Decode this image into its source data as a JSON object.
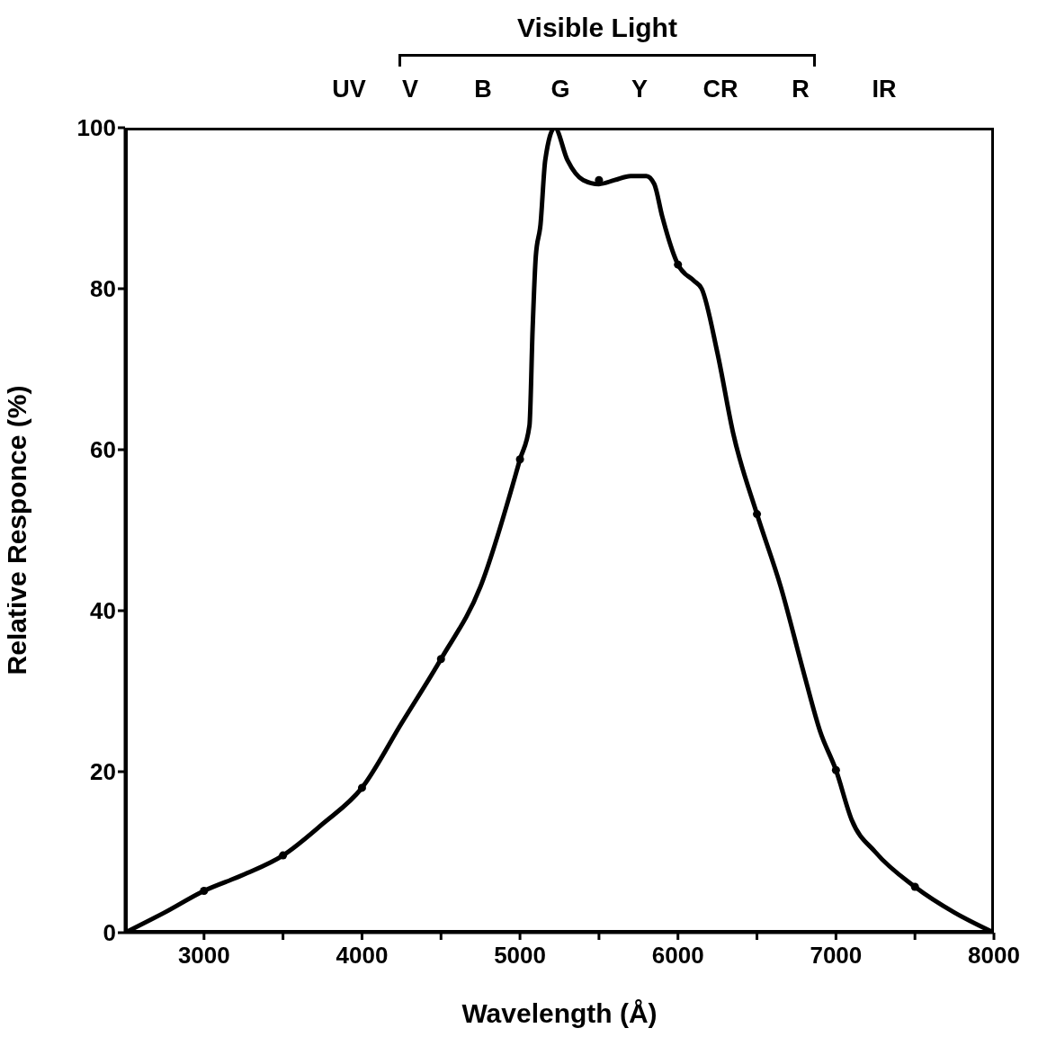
{
  "chart_data": {
    "type": "line",
    "xlabel": "Wavelength (Å)",
    "ylabel": "Relative Responce (%)",
    "xlim": [
      2500,
      8000
    ],
    "xticks": [
      3000,
      {
        "value": 3500,
        "label": null
      },
      4000,
      {
        "value": 4500,
        "label": null
      },
      5000,
      {
        "value": 5500,
        "label": null
      },
      6000,
      {
        "value": 6500,
        "label": null
      },
      7000,
      {
        "value": 7500,
        "label": null
      },
      8000
    ],
    "ylim": [
      0,
      100
    ],
    "yticks": [
      0,
      20,
      40,
      60,
      80,
      100
    ],
    "grid": false,
    "series": [
      {
        "color": "#000000",
        "marker": "none",
        "x": [
          2500,
          2750,
          3000,
          3250,
          3500,
          3750,
          4000,
          4250,
          4500,
          4750,
          5000,
          5060,
          5080,
          5100,
          5130,
          5160,
          5220,
          5300,
          5400,
          5500,
          5600,
          5700,
          5800,
          5850,
          5900,
          6000,
          6100,
          6150,
          6250,
          6350,
          6500,
          6650,
          6800,
          6900,
          7000,
          7100,
          7250,
          7500,
          7750,
          8000
        ],
        "values": [
          0,
          2.5,
          5.2,
          7.2,
          9.6,
          13.5,
          18,
          26,
          34,
          43,
          58.8,
          63,
          75,
          84,
          88,
          96,
          100,
          96,
          93.5,
          93,
          93.5,
          94,
          94,
          93,
          89,
          83,
          81,
          80,
          72,
          62,
          52,
          43,
          32,
          25,
          20.2,
          14,
          10,
          5.7,
          2.5,
          0
        ]
      },
      {
        "type": "scatter",
        "color": "#000000",
        "marker": "circle",
        "x": [
          3000,
          3500,
          4000,
          4500,
          5000,
          5500,
          6000,
          6500,
          7000,
          7500
        ],
        "values": [
          5.2,
          9.6,
          18,
          34,
          58.8,
          93.5,
          83,
          52,
          20.2,
          5.7
        ]
      }
    ],
    "annotations": [
      "Visible Light",
      "UV",
      "V",
      "B",
      "G",
      "Y",
      "CR",
      "R",
      "IR"
    ]
  }
}
